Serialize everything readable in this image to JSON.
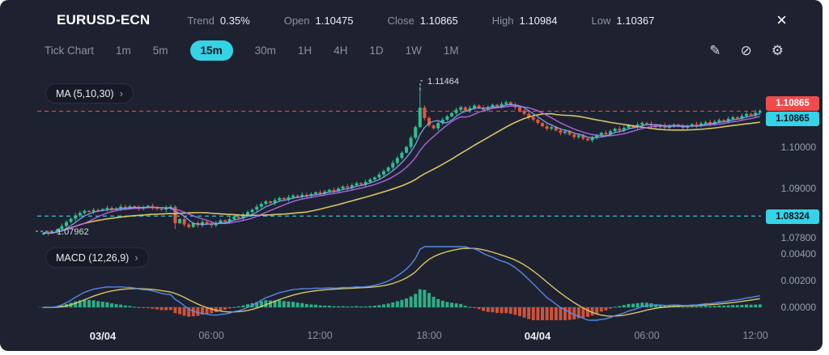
{
  "header": {
    "symbol": "EURUSD-ECN",
    "stats": [
      {
        "label": "Trend",
        "value": "0.35%"
      },
      {
        "label": "Open",
        "value": "1.10475"
      },
      {
        "label": "Close",
        "value": "1.10865"
      },
      {
        "label": "High",
        "value": "1.10984"
      },
      {
        "label": "Low",
        "value": "1.10367"
      }
    ]
  },
  "icons": {
    "close": "×",
    "draw": "✎",
    "circle_slash": "⊘",
    "settings": "⚙",
    "chevron": "›"
  },
  "toolbar": {
    "timeframes": [
      {
        "label": "Tick Chart",
        "active": false
      },
      {
        "label": "1m",
        "active": false
      },
      {
        "label": "5m",
        "active": false
      },
      {
        "label": "15m",
        "active": true
      },
      {
        "label": "30m",
        "active": false
      },
      {
        "label": "1H",
        "active": false
      },
      {
        "label": "4H",
        "active": false
      },
      {
        "label": "1D",
        "active": false
      },
      {
        "label": "1W",
        "active": false
      },
      {
        "label": "1M",
        "active": false
      }
    ]
  },
  "indicators": {
    "ma_label": "MA (5,10,30)",
    "macd_label": "MACD (12,26,9)"
  },
  "price_axis": {
    "alert_tag": "1.10865",
    "current_tag": "1.10865",
    "level_tag": "1.08324"
  },
  "colors": {
    "background": "#1e2230",
    "accent_cyan": "#35d3e6",
    "up_green": "#2fbe8f",
    "down_orange": "#e2583c",
    "alert_red": "#f04b4b",
    "ma_fast_blue": "#7ea6f0",
    "ma_mid_purple": "#b568e6",
    "ma_slow_yellow": "#e2cf6a",
    "macd_blue": "#5a8df0",
    "macd_signal_yellow": "#e2cf6a",
    "text_primary": "#eceef2",
    "text_secondary": "#8b90a0"
  },
  "chart_data": {
    "type": "candlestick",
    "symbol": "EURUSD-ECN",
    "interval": "15m",
    "title": "EURUSD-ECN 15m candlestick chart with MA(5,10,30) overlay and MACD(12,26,9) pane",
    "closes": [
      1.0792,
      1.079,
      1.0794,
      1.08,
      1.0808,
      1.0818,
      1.0826,
      1.0834,
      1.084,
      1.0845,
      1.0843,
      1.0847,
      1.0846,
      1.0849,
      1.0852,
      1.0848,
      1.0851,
      1.0855,
      1.0852,
      1.0856,
      1.0853,
      1.085,
      1.0854,
      1.0857,
      1.0853,
      1.085,
      1.0848,
      1.0852,
      1.0855,
      1.0815,
      1.0825,
      1.0812,
      1.0806,
      1.0815,
      1.081,
      1.0818,
      1.0814,
      1.081,
      1.0816,
      1.0822,
      1.0819,
      1.0825,
      1.0831,
      1.0828,
      1.0835,
      1.0842,
      1.0848,
      1.0855,
      1.0862,
      1.0868,
      1.0864,
      1.0871,
      1.0876,
      1.0873,
      1.0878,
      1.0882,
      1.0879,
      1.0884,
      1.0881,
      1.0886,
      1.089,
      1.0887,
      1.0892,
      1.0896,
      1.0893,
      1.0899,
      1.0904,
      1.0901,
      1.0907,
      1.0912,
      1.0909,
      1.0915,
      1.0921,
      1.0926,
      1.0933,
      1.0941,
      1.095,
      1.0961,
      1.0973,
      1.0986,
      1.1,
      1.1022,
      1.1048,
      1.1095,
      1.107,
      1.1052,
      1.1045,
      1.1058,
      1.1066,
      1.1074,
      1.1082,
      1.109,
      1.1096,
      1.1088,
      1.1094,
      1.11,
      1.1095,
      1.109,
      1.1096,
      1.1102,
      1.1098,
      1.1104,
      1.1108,
      1.1102,
      1.1096,
      1.1088,
      1.108,
      1.1072,
      1.1066,
      1.1058,
      1.105,
      1.1044,
      1.1048,
      1.104,
      1.1034,
      1.1038,
      1.103,
      1.1024,
      1.1028,
      1.102,
      1.1016,
      1.1022,
      1.1028,
      1.1034,
      1.103,
      1.1038,
      1.1044,
      1.104,
      1.1046,
      1.1052,
      1.1048,
      1.1054,
      1.1058,
      1.1056,
      1.1052,
      1.1048,
      1.1052,
      1.1046,
      1.105,
      1.1054,
      1.105,
      1.1046,
      1.105,
      1.1055,
      1.1052,
      1.1057,
      1.106,
      1.1056,
      1.1061,
      1.1065,
      1.1062,
      1.1068,
      1.1072,
      1.1069,
      1.1075,
      1.108,
      1.1077,
      1.1083,
      1.10865
    ],
    "overrides": {
      "2": {
        "low": 1.07962
      },
      "29": {
        "low": 1.0801
      },
      "83": {
        "high": 1.11464
      }
    },
    "lines": {
      "alert_price": 1.10865,
      "level_price": 1.08324
    },
    "moving_averages": [
      {
        "period": 5,
        "color": "ma_fast_blue"
      },
      {
        "period": 10,
        "color": "ma_mid_purple"
      },
      {
        "period": 30,
        "color": "ma_slow_yellow"
      }
    ],
    "macd": {
      "fast": 12,
      "slow": 26,
      "signal": 9
    },
    "axes": {
      "price_top": 1.116,
      "price_bottom": 1.0772,
      "y_ticks": [
        {
          "label": "1.10000",
          "price": 1.1
        },
        {
          "label": "1.09000",
          "price": 1.09
        },
        {
          "label": "1.07800",
          "price": 1.078
        }
      ],
      "macd_ticks": [
        {
          "label": "0.00400",
          "value": 0.004
        },
        {
          "label": "0.00200",
          "value": 0.002
        },
        {
          "label": "0.00000",
          "value": 0.0
        }
      ],
      "x_ticks": [
        {
          "label": "03/04",
          "index": 13,
          "bold": true
        },
        {
          "label": "06:00",
          "index": 37,
          "bold": false
        },
        {
          "label": "12:00",
          "index": 61,
          "bold": false
        },
        {
          "label": "18:00",
          "index": 85,
          "bold": false
        },
        {
          "label": "04/04",
          "index": 109,
          "bold": true
        },
        {
          "label": "06:00",
          "index": 133,
          "bold": false
        },
        {
          "label": "12:00",
          "index": 157,
          "bold": false
        }
      ]
    },
    "annotations": [
      {
        "label": "1.11464",
        "index": 83,
        "price": 1.11464
      },
      {
        "label": "1.07962",
        "index": 2,
        "price": 1.07962
      }
    ]
  }
}
